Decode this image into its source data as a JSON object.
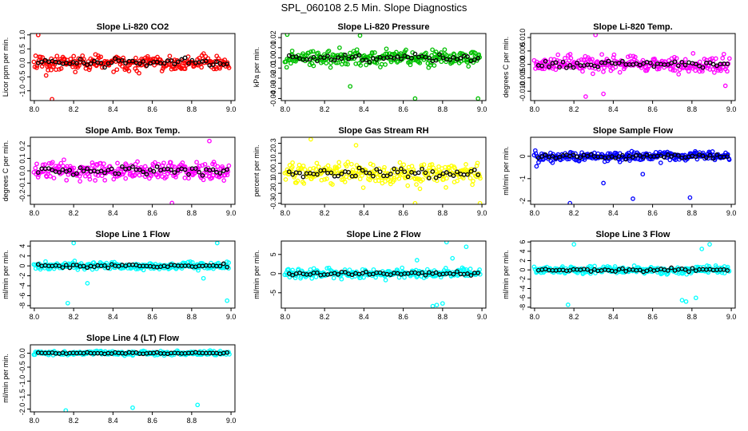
{
  "figure_title": "SPL_060108  2.5 Min. Slope Diagnostics",
  "chart_data": [
    {
      "id": "p0",
      "type": "scatter",
      "title": "Slope Li-820 CO2",
      "ylabel": "Licor ppm per min.",
      "xlim": [
        7.98,
        9.02
      ],
      "ylim": [
        -1.35,
        1.05
      ],
      "xticks": [
        "8.0",
        "8.2",
        "8.4",
        "8.6",
        "8.8",
        "9.0"
      ],
      "yticks": [
        "-1.0",
        "-0.5",
        "0.0",
        "0.5",
        "1.0"
      ],
      "ytick_values": [
        -1.0,
        -0.5,
        0.0,
        0.5,
        1.0
      ],
      "color": "#ff0000",
      "spread": 0.28,
      "band": 0,
      "outliers": [
        [
          8.02,
          1.0
        ],
        [
          8.09,
          -1.3
        ],
        [
          8.06,
          -0.45
        ]
      ]
    },
    {
      "id": "p1",
      "type": "scatter",
      "title": "Slope Li-820 Pressure",
      "ylabel": "kPa per min.",
      "xlim": [
        7.98,
        9.02
      ],
      "ylim": [
        -0.042,
        0.024
      ],
      "xticks": [
        "8.0",
        "8.2",
        "8.4",
        "8.6",
        "8.8",
        "9.0"
      ],
      "yticks": [
        "-0.04",
        "-0.03",
        "-0.02",
        "-0.01",
        "0.00",
        "0.01",
        "0.02"
      ],
      "ytick_values": [
        -0.04,
        -0.03,
        -0.02,
        -0.01,
        0.0,
        0.01,
        0.02
      ],
      "color": "#00c000",
      "spread": 0.007,
      "band": 0,
      "outliers": [
        [
          8.98,
          -0.04
        ],
        [
          8.66,
          -0.04
        ],
        [
          8.33,
          -0.028
        ],
        [
          8.38,
          0.022
        ],
        [
          8.01,
          0.023
        ]
      ]
    },
    {
      "id": "p2",
      "type": "scatter",
      "title": "Slope Li-820 Temp.",
      "ylabel": "degrees C per min.",
      "xlim": [
        7.98,
        9.02
      ],
      "ylim": [
        -0.0135,
        0.0115
      ],
      "xticks": [
        "8.0",
        "8.2",
        "8.4",
        "8.6",
        "8.8",
        "9.0"
      ],
      "yticks": [
        "-0.010",
        "-0.005",
        "0.000",
        "0.005",
        "0.010"
      ],
      "ytick_values": [
        -0.01,
        -0.005,
        0.0,
        0.005,
        0.01
      ],
      "color": "#ff00ff",
      "spread": 0.0028,
      "band": 0,
      "outliers": [
        [
          8.31,
          0.011
        ],
        [
          8.26,
          -0.012
        ],
        [
          8.35,
          -0.011
        ],
        [
          8.97,
          -0.008
        ]
      ]
    },
    {
      "id": "p3",
      "type": "scatter",
      "title": "Slope Amb. Box Temp.",
      "ylabel": "degrees C per min.",
      "xlim": [
        7.98,
        9.02
      ],
      "ylim": [
        -0.27,
        0.27
      ],
      "xticks": [
        "8.0",
        "8.2",
        "8.4",
        "8.6",
        "8.8",
        "9.0"
      ],
      "yticks": [
        "-0.2",
        "-0.1",
        "0.0",
        "0.1",
        "0.2"
      ],
      "ytick_values": [
        -0.2,
        -0.1,
        0.0,
        0.1,
        0.2
      ],
      "color": "#ff00ff",
      "spread": 0.07,
      "band": 0,
      "outliers": [
        [
          8.89,
          0.24
        ],
        [
          8.7,
          -0.26
        ]
      ]
    },
    {
      "id": "p4",
      "type": "scatter",
      "title": "Slope Gas Stream RH",
      "ylabel": "percent per min.",
      "xlim": [
        7.98,
        9.02
      ],
      "ylim": [
        -0.31,
        0.36
      ],
      "xticks": [
        "8.0",
        "8.2",
        "8.4",
        "8.6",
        "8.8",
        "9.0"
      ],
      "yticks": [
        "-0.3",
        "-0.2",
        "-0.1",
        "0.0",
        "0.1",
        "0.2",
        "0.3"
      ],
      "ytick_values": [
        -0.3,
        -0.2,
        -0.1,
        0.0,
        0.1,
        0.2,
        0.3
      ],
      "color": "#ffff00",
      "spread": 0.1,
      "band": 0,
      "outliers": [
        [
          8.13,
          0.34
        ],
        [
          8.36,
          0.28
        ],
        [
          8.66,
          -0.3
        ],
        [
          8.99,
          -0.3
        ]
      ]
    },
    {
      "id": "p5",
      "type": "scatter",
      "title": "Slope Sample Flow",
      "ylabel": "ml/min per min.",
      "xlim": [
        7.98,
        9.02
      ],
      "ylim": [
        -2.15,
        0.85
      ],
      "xticks": [
        "8.0",
        "8.2",
        "8.4",
        "8.6",
        "8.8",
        "9.0"
      ],
      "yticks": [
        "-2",
        "-1",
        "0"
      ],
      "ytick_values": [
        -2,
        -1,
        0
      ],
      "color": "#0000ff",
      "spread": 0.22,
      "band": 0,
      "outliers": [
        [
          8.01,
          -0.45
        ],
        [
          8.35,
          -1.2
        ],
        [
          8.5,
          -1.9
        ],
        [
          8.79,
          -1.85
        ],
        [
          8.18,
          -2.1
        ],
        [
          8.55,
          -0.8
        ]
      ]
    },
    {
      "id": "p6",
      "type": "scatter",
      "title": "Slope Line 1 Flow",
      "ylabel": "ml/min per min.",
      "xlim": [
        7.98,
        9.02
      ],
      "ylim": [
        -8.5,
        5.0
      ],
      "xticks": [
        "8.0",
        "8.2",
        "8.4",
        "8.6",
        "8.8",
        "9.0"
      ],
      "yticks": [
        "-8",
        "-6",
        "-4",
        "-2",
        "0",
        "2",
        "4"
      ],
      "ytick_values": [
        -8,
        -6,
        -4,
        -2,
        0,
        2,
        4
      ],
      "color": "#00ffff",
      "spread": 0.7,
      "band": 0,
      "outliers": [
        [
          8.2,
          4.6
        ],
        [
          8.93,
          4.6
        ],
        [
          8.17,
          -7.5
        ],
        [
          8.98,
          -7.0
        ],
        [
          8.86,
          -2.5
        ],
        [
          8.27,
          -3.5
        ]
      ]
    },
    {
      "id": "p7",
      "type": "scatter",
      "title": "Slope Line 2 Flow",
      "ylabel": "ml/min per min.",
      "xlim": [
        7.98,
        9.02
      ],
      "ylim": [
        -9.0,
        8.5
      ],
      "xticks": [
        "8.0",
        "8.2",
        "8.4",
        "8.6",
        "8.8",
        "9.0"
      ],
      "yticks": [
        "-5",
        "0",
        "5"
      ],
      "ytick_values": [
        -5,
        0,
        5
      ],
      "color": "#00ffff",
      "spread": 1.1,
      "band": 0,
      "outliers": [
        [
          8.82,
          8.2
        ],
        [
          8.92,
          7.0
        ],
        [
          8.77,
          -8.2
        ],
        [
          8.75,
          -8.5
        ],
        [
          8.8,
          -7.8
        ],
        [
          8.67,
          3.5
        ],
        [
          8.85,
          4.0
        ]
      ]
    },
    {
      "id": "p8",
      "type": "scatter",
      "title": "Slope Line 3 Flow",
      "ylabel": "ml/min per min.",
      "xlim": [
        7.98,
        9.02
      ],
      "ylim": [
        -8.2,
        6.2
      ],
      "xticks": [
        "8.0",
        "8.2",
        "8.4",
        "8.6",
        "8.8",
        "9.0"
      ],
      "yticks": [
        "-8",
        "-6",
        "-4",
        "-2",
        "0",
        "2",
        "4",
        "6"
      ],
      "ytick_values": [
        -8,
        -6,
        -4,
        -2,
        0,
        2,
        4,
        6
      ],
      "color": "#00ffff",
      "spread": 0.8,
      "band": 0,
      "outliers": [
        [
          8.17,
          -7.5
        ],
        [
          8.2,
          5.5
        ],
        [
          8.75,
          -6.5
        ],
        [
          8.82,
          -6.0
        ],
        [
          8.77,
          -6.8
        ],
        [
          8.89,
          5.5
        ],
        [
          8.85,
          4.5
        ]
      ]
    },
    {
      "id": "p9",
      "type": "scatter",
      "title": "Slope Line 4 (LT) Flow",
      "ylabel": "ml/min per min.",
      "xlim": [
        7.98,
        9.02
      ],
      "ylim": [
        -2.1,
        0.3
      ],
      "xticks": [
        "8.0",
        "8.2",
        "8.4",
        "8.6",
        "8.8",
        "9.0"
      ],
      "yticks": [
        "-2.0",
        "-1.5",
        "-1.0",
        "-0.5",
        "0.0"
      ],
      "ytick_values": [
        -2.0,
        -1.5,
        -1.0,
        -0.5,
        0.0
      ],
      "color": "#00ffff",
      "spread": 0.07,
      "band": 0,
      "outliers": [
        [
          8.16,
          -2.05
        ],
        [
          8.5,
          -1.95
        ],
        [
          8.83,
          -1.85
        ]
      ]
    }
  ]
}
